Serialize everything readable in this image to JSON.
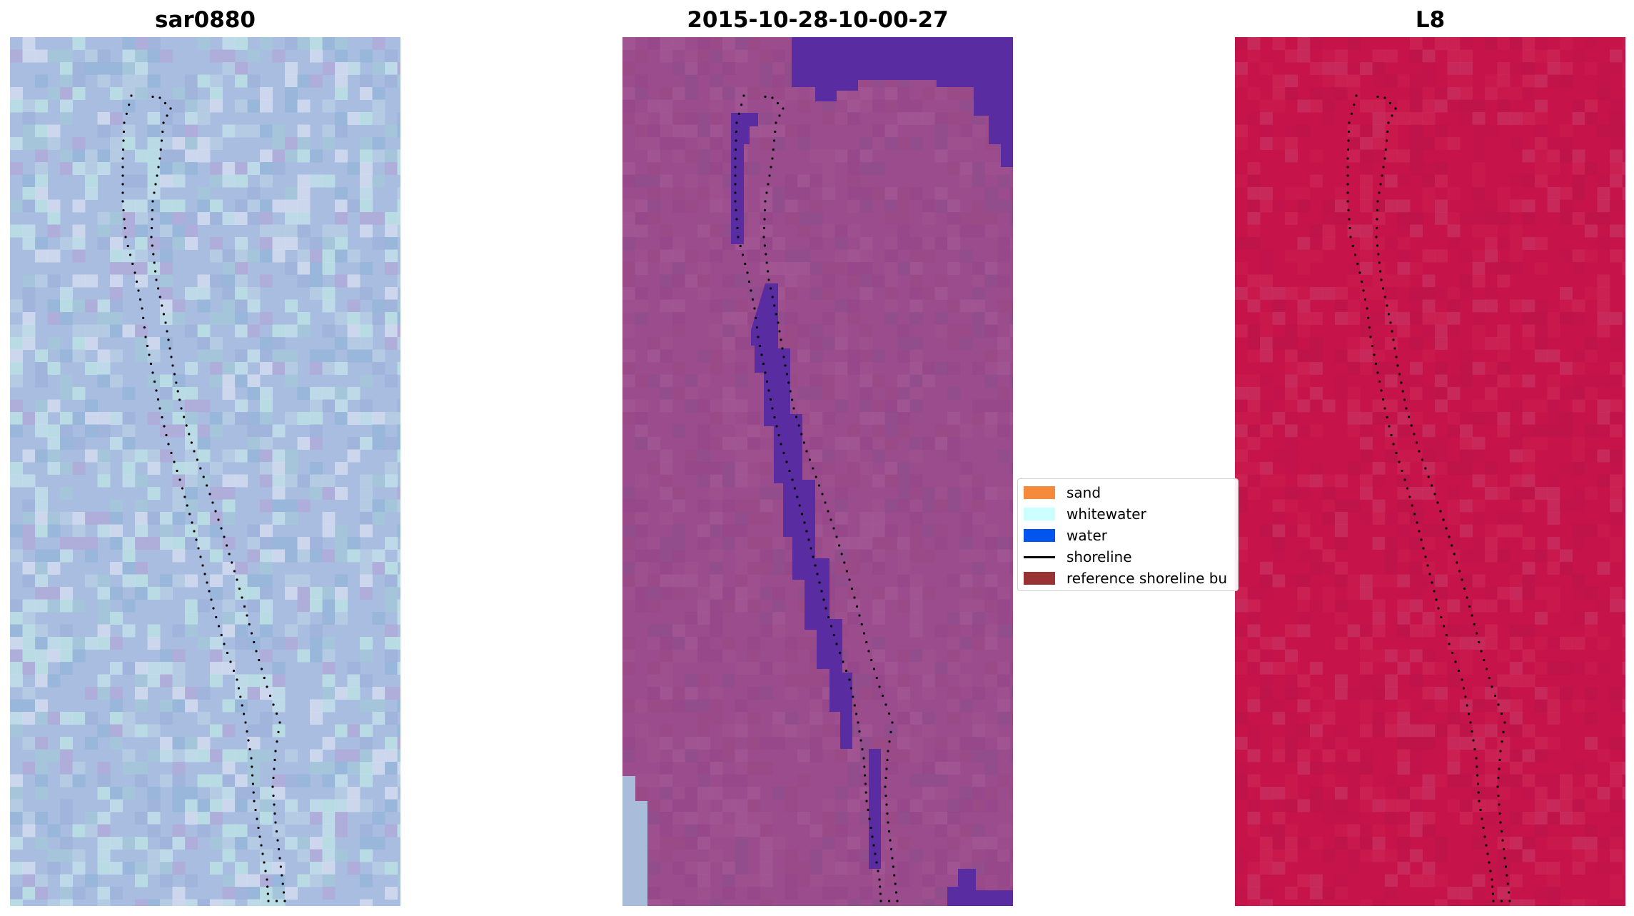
{
  "panels": [
    {
      "title": "sar0880",
      "palette": "rgb-true"
    },
    {
      "title": "2015-10-28-10-00-27",
      "palette": "classified"
    },
    {
      "title": "L8",
      "palette": "swir"
    }
  ],
  "legend": {
    "items": [
      {
        "label": "sand",
        "color": "#f58a3b",
        "kind": "patch"
      },
      {
        "label": "whitewater",
        "color": "#ccffff",
        "kind": "patch"
      },
      {
        "label": "water",
        "color": "#0055ee",
        "kind": "patch"
      },
      {
        "label": "shoreline",
        "color": "#000000",
        "kind": "line"
      },
      {
        "label": "reference shoreline bu",
        "color": "#993333",
        "kind": "patch"
      }
    ]
  },
  "colors": {
    "panel1_base": "#a7bfe0",
    "panel2_base": "#9a4a8a",
    "panel2_water": "#5a2aa0",
    "panel3_base": "#c8144a",
    "shoreline_dots": "#000000"
  }
}
